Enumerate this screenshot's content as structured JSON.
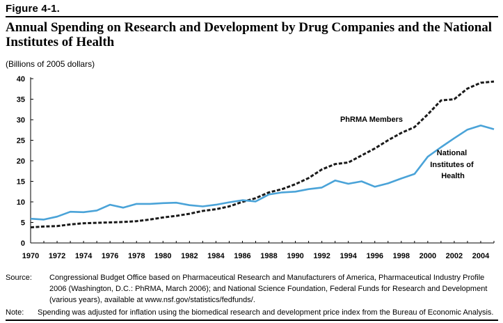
{
  "figure": {
    "label": "Figure 4-1.",
    "title": "Annual Spending on Research and Development by Drug Companies and the National Institutes of Health",
    "units": "(Billions of 2005 dollars)"
  },
  "footnotes": {
    "source_head": "Source:",
    "source_text": "Congressional Budget Office based on Pharmaceutical Research and Manufacturers of America, Pharmaceutical Industry Profile 2006 (Washington, D.C.: PhRMA, March 2006); and National Science Foundation, Federal Funds for Research and Development (various years), available at www.nsf.gov/statistics/fedfunds/.",
    "note_head": "Note:",
    "note_text": "Spending was adjusted for inflation using the biomedical research and development price index from the Bureau of Economic Analysis."
  },
  "colors": {
    "phrma": "#1a1a1a",
    "nih": "#4aa3d8",
    "axis": "#000000"
  },
  "chart_data": {
    "type": "line",
    "x": [
      1970,
      1971,
      1972,
      1973,
      1974,
      1975,
      1976,
      1977,
      1978,
      1979,
      1980,
      1981,
      1982,
      1983,
      1984,
      1985,
      1986,
      1987,
      1988,
      1989,
      1990,
      1991,
      1992,
      1993,
      1994,
      1995,
      1996,
      1997,
      1998,
      1999,
      2000,
      2001,
      2002,
      2003,
      2004,
      2005
    ],
    "xticks": [
      "1970",
      "1972",
      "1974",
      "1976",
      "1978",
      "1980",
      "1982",
      "1984",
      "1986",
      "1988",
      "1990",
      "1992",
      "1994",
      "1996",
      "1998",
      "2000",
      "2002",
      "2004"
    ],
    "yticks": [
      "0",
      "5",
      "10",
      "15",
      "20",
      "25",
      "30",
      "35",
      "40"
    ],
    "xlim": [
      1970,
      2005
    ],
    "ylim": [
      0,
      40
    ],
    "grid": false,
    "series": [
      {
        "name": "PhRMA Members",
        "style": "dashed",
        "values": [
          3.8,
          4.0,
          4.1,
          4.5,
          4.8,
          4.9,
          5.0,
          5.1,
          5.3,
          5.7,
          6.2,
          6.6,
          7.1,
          7.8,
          8.2,
          8.9,
          10.0,
          10.9,
          12.3,
          13.1,
          14.3,
          15.8,
          17.9,
          19.2,
          19.6,
          21.3,
          23.0,
          25.0,
          26.8,
          28.2,
          31.3,
          34.7,
          35.0,
          37.6,
          39.0,
          39.3
        ]
      },
      {
        "name": "National Institutes of Health",
        "style": "solid",
        "values": [
          5.9,
          5.7,
          6.4,
          7.6,
          7.5,
          7.9,
          9.3,
          8.6,
          9.5,
          9.5,
          9.7,
          9.8,
          9.2,
          8.9,
          9.3,
          9.9,
          10.4,
          10.1,
          11.8,
          12.3,
          12.5,
          13.1,
          13.5,
          15.2,
          14.4,
          15.0,
          13.7,
          14.5,
          15.7,
          16.8,
          21.0,
          23.3,
          25.5,
          27.6,
          28.6,
          27.7
        ]
      }
    ]
  }
}
